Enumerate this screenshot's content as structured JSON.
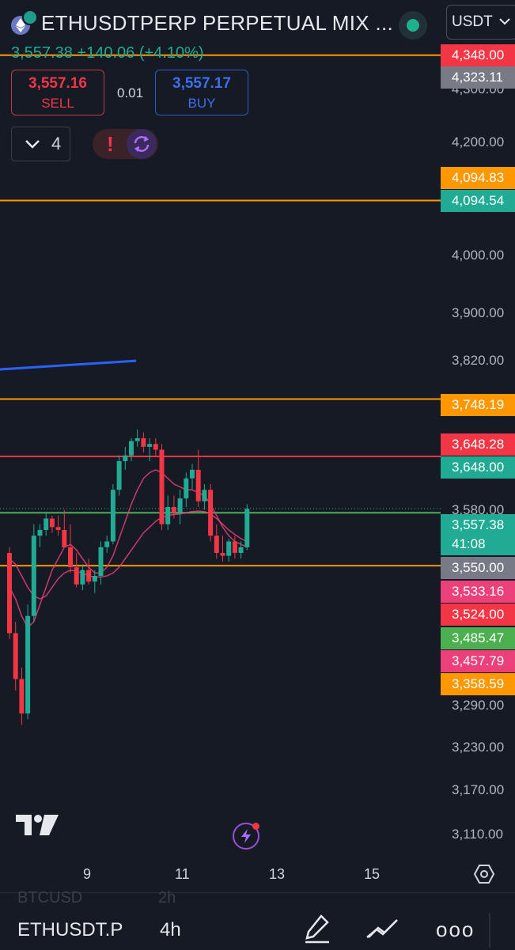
{
  "header": {
    "symbol_title": "ETHUSDTPERP PERPETUAL MIX ...",
    "currency": "USDT",
    "last_price": "3,557.38",
    "change": "+140.06 (+4.10%)"
  },
  "trade": {
    "sell_price": "3,557.16",
    "sell_label": "SELL",
    "buy_price": "3,557.17",
    "buy_label": "BUY",
    "spread": "0.01"
  },
  "toolbar": {
    "layers_count": "4",
    "alert_glyph": "!"
  },
  "price_axis": {
    "labels": [
      "4,300.00",
      "4,200.00",
      "4,000.00",
      "3,900.00",
      "3,820.00",
      "3,580.00",
      "3,290.00",
      "3,230.00",
      "3,170.00",
      "3,110.00"
    ]
  },
  "price_tags": [
    {
      "text": "4,348.00",
      "color": "#f23645"
    },
    {
      "text": "4,323.11",
      "color": "#787b86"
    },
    {
      "text": "4,094.83",
      "color": "#ff9800"
    },
    {
      "text": "4,094.54",
      "color": "#22ab94"
    },
    {
      "text": "3,748.19",
      "color": "#ff9800"
    },
    {
      "text": "3,648.28",
      "color": "#f23645"
    },
    {
      "text": "3,648.00",
      "color": "#22ab94"
    },
    {
      "text": "3,557.38",
      "color": "#22ab94"
    },
    {
      "text": "41:08",
      "color": "#22ab94"
    },
    {
      "text": "3,550.00",
      "color": "#787b86"
    },
    {
      "text": "3,533.16",
      "color": "#ec407a"
    },
    {
      "text": "3,524.00",
      "color": "#f23645"
    },
    {
      "text": "3,485.47",
      "color": "#4caf50"
    },
    {
      "text": "3,457.79",
      "color": "#ec407a"
    },
    {
      "text": "3,358.59",
      "color": "#ff9800"
    }
  ],
  "time_axis": {
    "labels": [
      "9",
      "11",
      "13",
      "15"
    ]
  },
  "bottom_bar": {
    "symbol": "ETHUSDT.P",
    "interval": "4h",
    "ghost_symbol": "BTCUSD",
    "ghost_interval": "2h",
    "more": "ooo"
  },
  "colors": {
    "background": "#161a25",
    "up": "#22ab94",
    "down": "#f23645",
    "level_orange": "#ff9800",
    "level_red": "#f23645",
    "level_green": "#4caf50",
    "ma": "#ec407a",
    "trendline": "#2962ff"
  },
  "chart_data": {
    "type": "candlestick",
    "symbol": "ETHUSDTPERP",
    "interval": "4h",
    "x_ticks": [
      "9",
      "11",
      "13",
      "15"
    ],
    "ylim": [
      3100,
      4350
    ],
    "candles": [
      {
        "o": 3480,
        "h": 3490,
        "l": 3330,
        "c": 3340
      },
      {
        "o": 3340,
        "h": 3360,
        "l": 3240,
        "c": 3260
      },
      {
        "o": 3260,
        "h": 3280,
        "l": 3180,
        "c": 3200
      },
      {
        "o": 3200,
        "h": 3390,
        "l": 3190,
        "c": 3370
      },
      {
        "o": 3370,
        "h": 3530,
        "l": 3360,
        "c": 3510
      },
      {
        "o": 3510,
        "h": 3530,
        "l": 3490,
        "c": 3520
      },
      {
        "o": 3520,
        "h": 3550,
        "l": 3510,
        "c": 3540
      },
      {
        "o": 3540,
        "h": 3545,
        "l": 3515,
        "c": 3525
      },
      {
        "o": 3525,
        "h": 3545,
        "l": 3510,
        "c": 3520
      },
      {
        "o": 3520,
        "h": 3555,
        "l": 3490,
        "c": 3490
      },
      {
        "o": 3490,
        "h": 3530,
        "l": 3445,
        "c": 3455
      },
      {
        "o": 3455,
        "h": 3480,
        "l": 3420,
        "c": 3425
      },
      {
        "o": 3425,
        "h": 3460,
        "l": 3415,
        "c": 3450
      },
      {
        "o": 3450,
        "h": 3470,
        "l": 3425,
        "c": 3430
      },
      {
        "o": 3430,
        "h": 3450,
        "l": 3410,
        "c": 3440
      },
      {
        "o": 3440,
        "h": 3500,
        "l": 3425,
        "c": 3490
      },
      {
        "o": 3490,
        "h": 3510,
        "l": 3480,
        "c": 3500
      },
      {
        "o": 3500,
        "h": 3600,
        "l": 3495,
        "c": 3590
      },
      {
        "o": 3590,
        "h": 3650,
        "l": 3580,
        "c": 3640
      },
      {
        "o": 3640,
        "h": 3665,
        "l": 3625,
        "c": 3650
      },
      {
        "o": 3650,
        "h": 3680,
        "l": 3640,
        "c": 3675
      },
      {
        "o": 3675,
        "h": 3695,
        "l": 3665,
        "c": 3680
      },
      {
        "o": 3680,
        "h": 3690,
        "l": 3655,
        "c": 3665
      },
      {
        "o": 3665,
        "h": 3680,
        "l": 3640,
        "c": 3670
      },
      {
        "o": 3670,
        "h": 3680,
        "l": 3650,
        "c": 3660
      },
      {
        "o": 3660,
        "h": 3670,
        "l": 3520,
        "c": 3530
      },
      {
        "o": 3530,
        "h": 3580,
        "l": 3520,
        "c": 3560
      },
      {
        "o": 3560,
        "h": 3580,
        "l": 3540,
        "c": 3550
      },
      {
        "o": 3550,
        "h": 3590,
        "l": 3530,
        "c": 3575
      },
      {
        "o": 3575,
        "h": 3620,
        "l": 3560,
        "c": 3610
      },
      {
        "o": 3610,
        "h": 3635,
        "l": 3590,
        "c": 3625
      },
      {
        "o": 3625,
        "h": 3660,
        "l": 3560,
        "c": 3570
      },
      {
        "o": 3570,
        "h": 3600,
        "l": 3555,
        "c": 3590
      },
      {
        "o": 3590,
        "h": 3600,
        "l": 3500,
        "c": 3510
      },
      {
        "o": 3510,
        "h": 3530,
        "l": 3470,
        "c": 3480
      },
      {
        "o": 3480,
        "h": 3510,
        "l": 3465,
        "c": 3475
      },
      {
        "o": 3475,
        "h": 3505,
        "l": 3465,
        "c": 3500
      },
      {
        "o": 3500,
        "h": 3510,
        "l": 3470,
        "c": 3480
      },
      {
        "o": 3480,
        "h": 3500,
        "l": 3470,
        "c": 3490
      },
      {
        "o": 3490,
        "h": 3565,
        "l": 3485,
        "c": 3557
      }
    ],
    "ma_fast": [
      3420,
      3400,
      3370,
      3350,
      3360,
      3390,
      3420,
      3450,
      3470,
      3490,
      3495,
      3485,
      3470,
      3455,
      3445,
      3445,
      3455,
      3475,
      3505,
      3535,
      3565,
      3590,
      3610,
      3620,
      3625,
      3620,
      3610,
      3600,
      3595,
      3590,
      3590,
      3585,
      3580,
      3565,
      3545,
      3525,
      3510,
      3500,
      3495,
      3490
    ],
    "ma_slow": [
      3470,
      3460,
      3440,
      3420,
      3405,
      3400,
      3405,
      3420,
      3435,
      3445,
      3450,
      3448,
      3445,
      3440,
      3438,
      3438,
      3440,
      3445,
      3455,
      3470,
      3485,
      3500,
      3515,
      3525,
      3535,
      3542,
      3545,
      3547,
      3548,
      3550,
      3552,
      3553,
      3552,
      3548,
      3540,
      3530,
      3520,
      3512,
      3505,
      3500
    ],
    "levels": [
      {
        "price": 4348.0,
        "color": "#ff9800",
        "style": "solid"
      },
      {
        "price": 4094.54,
        "color": "#ff9800",
        "style": "solid"
      },
      {
        "price": 3748.19,
        "color": "#ff9800",
        "style": "solid"
      },
      {
        "price": 3648.28,
        "color": "#f23645",
        "style": "solid"
      },
      {
        "price": 3557.38,
        "color": "#22ab94",
        "style": "dotted"
      },
      {
        "price": 3550.0,
        "color": "#4caf50",
        "style": "solid"
      },
      {
        "price": 3457.79,
        "color": "#ff9800",
        "style": "solid"
      }
    ],
    "trendline": {
      "from": 3800,
      "to": 3815
    },
    "current_price": 3557.38,
    "countdown": "41:08"
  }
}
